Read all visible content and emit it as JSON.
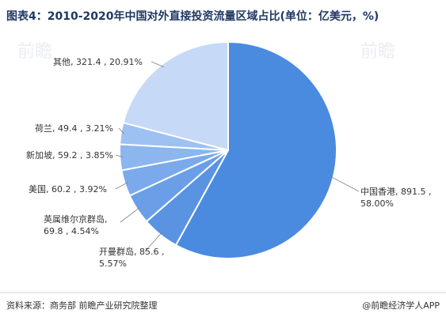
{
  "colors": {
    "title": "#1f3864",
    "series": [
      "#4a8be0",
      "#5b93e3",
      "#6a9fe8",
      "#7aaaeb",
      "#8bb6ee",
      "#9dc1f1",
      "#c6d9f6"
    ],
    "leader": "#7f7f7f",
    "divider": "#cfcfcf"
  },
  "chart_data": {
    "type": "pie",
    "title": "图表4：2010-2020年中国对外直接投资流量区域占比(单位：亿美元，%)",
    "slices": [
      {
        "label_lines": [
          "中国香港, 891.5 ,",
          "58.00%"
        ],
        "value": 891.5,
        "percent": 58.0
      },
      {
        "label_lines": [
          "开曼群岛, 85.6 ,",
          "5.57%"
        ],
        "value": 85.6,
        "percent": 5.57
      },
      {
        "label_lines": [
          "英属维尔京群岛,",
          "69.8 , 4.54%"
        ],
        "value": 69.8,
        "percent": 4.54
      },
      {
        "label_lines": [
          "美国, 60.2 , 3.92%"
        ],
        "value": 60.2,
        "percent": 3.92
      },
      {
        "label_lines": [
          "新加坡, 59.2 , 3.85%"
        ],
        "value": 59.2,
        "percent": 3.85
      },
      {
        "label_lines": [
          "荷兰, 49.4 , 3.21%"
        ],
        "value": 49.4,
        "percent": 3.21
      },
      {
        "label_lines": [
          "其他, 321.4 , 20.91%"
        ],
        "value": 321.4,
        "percent": 20.91
      }
    ]
  },
  "footer": {
    "source": "资料来源：商务部 前瞻产业研究院整理",
    "brand": "@前瞻经济学人APP"
  },
  "watermark": {
    "text": "前瞻"
  }
}
